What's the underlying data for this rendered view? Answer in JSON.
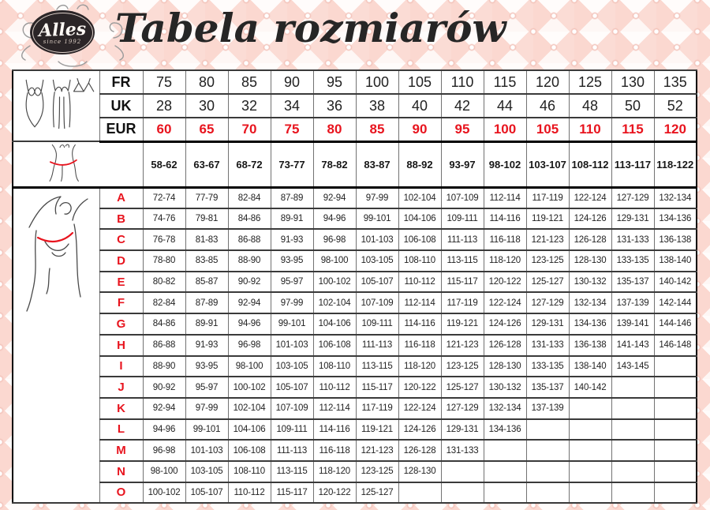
{
  "brand": {
    "name": "Alles",
    "since": "since 1992"
  },
  "title": "Tabela rozmiarów",
  "colors": {
    "accent_red": "#e8141e",
    "grid_gray": "#727272",
    "line_dark": "#3a3a3a",
    "quilt_pink": "#fbdcd5",
    "quilt_light": "#fef7f5",
    "ink": "#1c1c1c"
  },
  "icons": [
    {
      "name": "lingerie-garments-icon",
      "meaning": "bodysuit, camisole and bra line drawings"
    },
    {
      "name": "underbust-measure-icon",
      "meaning": "torso with red underbust measuring line"
    },
    {
      "name": "bust-measure-icon",
      "meaning": "figure with raised arms and red bust measuring line"
    }
  ],
  "table": {
    "header_rows": [
      {
        "label": "FR",
        "values": [
          "75",
          "80",
          "85",
          "90",
          "95",
          "100",
          "105",
          "110",
          "115",
          "120",
          "125",
          "130",
          "135"
        ]
      },
      {
        "label": "UK",
        "values": [
          "28",
          "30",
          "32",
          "34",
          "36",
          "38",
          "40",
          "42",
          "44",
          "46",
          "48",
          "50",
          "52"
        ]
      },
      {
        "label": "EUR",
        "values": [
          "60",
          "65",
          "70",
          "75",
          "80",
          "85",
          "90",
          "95",
          "100",
          "105",
          "110",
          "115",
          "120"
        ]
      }
    ],
    "underbust": {
      "values": [
        "58-62",
        "63-67",
        "68-72",
        "73-77",
        "78-82",
        "83-87",
        "88-92",
        "93-97",
        "98-102",
        "103-107",
        "108-112",
        "113-117",
        "118-122"
      ]
    },
    "cup_rows": [
      {
        "label": "A",
        "values": [
          "72-74",
          "77-79",
          "82-84",
          "87-89",
          "92-94",
          "97-99",
          "102-104",
          "107-109",
          "112-114",
          "117-119",
          "122-124",
          "127-129",
          "132-134"
        ]
      },
      {
        "label": "B",
        "values": [
          "74-76",
          "79-81",
          "84-86",
          "89-91",
          "94-96",
          "99-101",
          "104-106",
          "109-111",
          "114-116",
          "119-121",
          "124-126",
          "129-131",
          "134-136"
        ]
      },
      {
        "label": "C",
        "values": [
          "76-78",
          "81-83",
          "86-88",
          "91-93",
          "96-98",
          "101-103",
          "106-108",
          "111-113",
          "116-118",
          "121-123",
          "126-128",
          "131-133",
          "136-138"
        ]
      },
      {
        "label": "D",
        "values": [
          "78-80",
          "83-85",
          "88-90",
          "93-95",
          "98-100",
          "103-105",
          "108-110",
          "113-115",
          "118-120",
          "123-125",
          "128-130",
          "133-135",
          "138-140"
        ]
      },
      {
        "label": "E",
        "values": [
          "80-82",
          "85-87",
          "90-92",
          "95-97",
          "100-102",
          "105-107",
          "110-112",
          "115-117",
          "120-122",
          "125-127",
          "130-132",
          "135-137",
          "140-142"
        ]
      },
      {
        "label": "F",
        "values": [
          "82-84",
          "87-89",
          "92-94",
          "97-99",
          "102-104",
          "107-109",
          "112-114",
          "117-119",
          "122-124",
          "127-129",
          "132-134",
          "137-139",
          "142-144"
        ]
      },
      {
        "label": "G",
        "values": [
          "84-86",
          "89-91",
          "94-96",
          "99-101",
          "104-106",
          "109-111",
          "114-116",
          "119-121",
          "124-126",
          "129-131",
          "134-136",
          "139-141",
          "144-146"
        ]
      },
      {
        "label": "H",
        "values": [
          "86-88",
          "91-93",
          "96-98",
          "101-103",
          "106-108",
          "111-113",
          "116-118",
          "121-123",
          "126-128",
          "131-133",
          "136-138",
          "141-143",
          "146-148"
        ]
      },
      {
        "label": "I",
        "values": [
          "88-90",
          "93-95",
          "98-100",
          "103-105",
          "108-110",
          "113-115",
          "118-120",
          "123-125",
          "128-130",
          "133-135",
          "138-140",
          "143-145",
          ""
        ]
      },
      {
        "label": "J",
        "values": [
          "90-92",
          "95-97",
          "100-102",
          "105-107",
          "110-112",
          "115-117",
          "120-122",
          "125-127",
          "130-132",
          "135-137",
          "140-142",
          "",
          ""
        ]
      },
      {
        "label": "K",
        "values": [
          "92-94",
          "97-99",
          "102-104",
          "107-109",
          "112-114",
          "117-119",
          "122-124",
          "127-129",
          "132-134",
          "137-139",
          "",
          "",
          ""
        ]
      },
      {
        "label": "L",
        "values": [
          "94-96",
          "99-101",
          "104-106",
          "109-111",
          "114-116",
          "119-121",
          "124-126",
          "129-131",
          "134-136",
          "",
          "",
          "",
          ""
        ]
      },
      {
        "label": "M",
        "values": [
          "96-98",
          "101-103",
          "106-108",
          "111-113",
          "116-118",
          "121-123",
          "126-128",
          "131-133",
          "",
          "",
          "",
          "",
          ""
        ]
      },
      {
        "label": "N",
        "values": [
          "98-100",
          "103-105",
          "108-110",
          "113-115",
          "118-120",
          "123-125",
          "128-130",
          "",
          "",
          "",
          "",
          "",
          ""
        ]
      },
      {
        "label": "O",
        "values": [
          "100-102",
          "105-107",
          "110-112",
          "115-117",
          "120-122",
          "125-127",
          "",
          "",
          "",
          "",
          "",
          "",
          ""
        ]
      }
    ]
  }
}
